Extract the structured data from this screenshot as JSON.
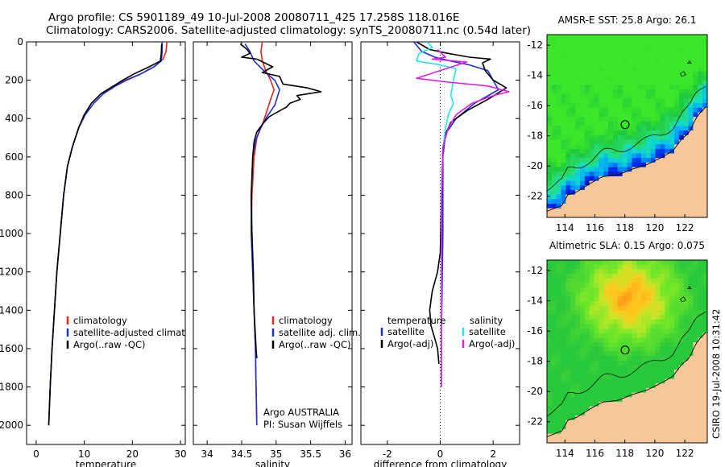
{
  "figure": {
    "title_line1": "Argo profile: CS 5901189_49 10-Jul-2008 20080711_425 17.258S 118.016E",
    "title_line2": "Climatology: CARS2006. Satellite-adjusted climatology: synTS_20080711.nc (0.54d later)",
    "side_stamp": "CSIRO 19-Jul-2008 10:31:42",
    "credit_line1": "Argo AUSTRALIA",
    "credit_line2": "PI: Susan Wijffels"
  },
  "colors": {
    "climatology": "#e8261b",
    "satellite": "#1c2fd9",
    "argo": "#000000",
    "sat_salinity": "#24e5e8",
    "argo_salinity": "#e01ee0",
    "land": "#f7c79a"
  },
  "chart_data": [
    {
      "id": "temperature",
      "type": "line",
      "xlabel": "temperature",
      "ylabel": "",
      "xlim": [
        -2,
        31
      ],
      "ylim": [
        2100,
        0
      ],
      "xticks": [
        "0",
        "10",
        "20",
        "30"
      ],
      "yticks": [
        "0",
        "200",
        "400",
        "600",
        "800",
        "1000",
        "1200",
        "1400",
        "1600",
        "1800",
        "2000"
      ],
      "legend": [
        {
          "label": "climatology",
          "color": "#e8261b"
        },
        {
          "label": "satellite-adjusted climatology",
          "color": "#1c2fd9"
        },
        {
          "label": "Argo(..raw -QC)",
          "color": "#000000"
        }
      ],
      "series": [
        {
          "name": "climatology",
          "color": "#e8261b",
          "points": [
            [
              27.2,
              0
            ],
            [
              27.0,
              50
            ],
            [
              26.4,
              90
            ],
            [
              24.5,
              130
            ],
            [
              21.5,
              170
            ],
            [
              18.5,
              200
            ],
            [
              16.0,
              230
            ],
            [
              13.5,
              270
            ],
            [
              11.5,
              320
            ],
            [
              10.0,
              380
            ],
            [
              8.8,
              450
            ],
            [
              7.5,
              550
            ],
            [
              6.5,
              650
            ],
            [
              5.7,
              800
            ],
            [
              5.0,
              1000
            ],
            [
              4.3,
              1200
            ],
            [
              3.8,
              1400
            ],
            [
              3.3,
              1600
            ],
            [
              2.9,
              1800
            ],
            [
              2.6,
              2000
            ]
          ]
        },
        {
          "name": "satellite-adjusted climatology",
          "color": "#1c2fd9",
          "points": [
            [
              26.2,
              0
            ],
            [
              26.2,
              50
            ],
            [
              26.0,
              100
            ],
            [
              24.5,
              130
            ],
            [
              21.5,
              170
            ],
            [
              18.8,
              200
            ],
            [
              16.5,
              230
            ],
            [
              14.0,
              270
            ],
            [
              12.0,
              320
            ],
            [
              10.2,
              380
            ],
            [
              8.8,
              450
            ],
            [
              7.5,
              550
            ],
            [
              6.5,
              650
            ],
            [
              5.7,
              800
            ],
            [
              5.0,
              1000
            ],
            [
              4.3,
              1200
            ],
            [
              3.8,
              1400
            ],
            [
              3.3,
              1600
            ],
            [
              2.9,
              1800
            ],
            [
              2.6,
              2000
            ]
          ]
        },
        {
          "name": "Argo(..raw -QC)",
          "color": "#000000",
          "points": [
            [
              26.1,
              10
            ],
            [
              26.0,
              60
            ],
            [
              25.8,
              100
            ],
            [
              23.5,
              130
            ],
            [
              20.5,
              165
            ],
            [
              18.0,
              200
            ],
            [
              15.5,
              240
            ],
            [
              13.5,
              270
            ],
            [
              11.5,
              320
            ],
            [
              10.0,
              380
            ],
            [
              8.8,
              450
            ],
            [
              7.5,
              550
            ],
            [
              6.5,
              650
            ],
            [
              5.7,
              800
            ],
            [
              5.0,
              1000
            ],
            [
              4.3,
              1200
            ],
            [
              3.8,
              1400
            ],
            [
              3.3,
              1600
            ],
            [
              2.9,
              1800
            ],
            [
              2.6,
              2000
            ]
          ]
        }
      ]
    },
    {
      "id": "salinity",
      "type": "line",
      "xlabel": "salinity",
      "ylabel": "",
      "xlim": [
        33.8,
        36.1
      ],
      "ylim": [
        2100,
        0
      ],
      "xticks": [
        "34",
        "34.5",
        "35",
        "35.5",
        "36"
      ],
      "yticks": [],
      "legend": [
        {
          "label": "climatology",
          "color": "#e8261b"
        },
        {
          "label": "satellite adj. clim.",
          "color": "#1c2fd9"
        },
        {
          "label": "Argo(..raw -QC)",
          "color": "#000000"
        }
      ],
      "series": [
        {
          "name": "climatology",
          "color": "#e8261b",
          "points": [
            [
              34.8,
              0
            ],
            [
              34.78,
              50
            ],
            [
              34.8,
              100
            ],
            [
              34.85,
              150
            ],
            [
              34.92,
              200
            ],
            [
              34.97,
              250
            ],
            [
              34.92,
              300
            ],
            [
              34.85,
              380
            ],
            [
              34.78,
              450
            ],
            [
              34.72,
              500
            ],
            [
              34.68,
              600
            ],
            [
              34.65,
              800
            ],
            [
              34.64,
              1000
            ],
            [
              34.66,
              1200
            ],
            [
              34.68,
              1400
            ],
            [
              34.7,
              1600
            ],
            [
              34.71,
              1800
            ],
            [
              34.72,
              2000
            ]
          ]
        },
        {
          "name": "satellite adj. clim.",
          "color": "#1c2fd9",
          "points": [
            [
              34.55,
              10
            ],
            [
              34.62,
              50
            ],
            [
              34.68,
              100
            ],
            [
              34.85,
              160
            ],
            [
              34.98,
              200
            ],
            [
              35.05,
              250
            ],
            [
              34.98,
              330
            ],
            [
              34.85,
              400
            ],
            [
              34.76,
              460
            ],
            [
              34.7,
              520
            ],
            [
              34.66,
              600
            ],
            [
              34.64,
              800
            ],
            [
              34.64,
              1000
            ],
            [
              34.66,
              1200
            ],
            [
              34.68,
              1400
            ],
            [
              34.7,
              1600
            ],
            [
              34.71,
              1800
            ],
            [
              34.72,
              2000
            ]
          ]
        },
        {
          "name": "Argo(..raw -QC)",
          "color": "#000000",
          "points": [
            [
              34.48,
              10
            ],
            [
              34.58,
              40
            ],
            [
              34.62,
              60
            ],
            [
              34.5,
              80
            ],
            [
              34.72,
              90
            ],
            [
              34.95,
              130
            ],
            [
              34.8,
              160
            ],
            [
              35.05,
              180
            ],
            [
              35.1,
              220
            ],
            [
              35.45,
              240
            ],
            [
              35.65,
              260
            ],
            [
              35.3,
              280
            ],
            [
              35.35,
              300
            ],
            [
              35.2,
              320
            ],
            [
              35.15,
              340
            ],
            [
              35.0,
              370
            ],
            [
              34.9,
              390
            ],
            [
              34.8,
              430
            ],
            [
              34.72,
              470
            ],
            [
              34.68,
              520
            ],
            [
              34.66,
              600
            ],
            [
              34.64,
              800
            ],
            [
              34.65,
              1000
            ],
            [
              34.67,
              1200
            ],
            [
              34.68,
              1400
            ],
            [
              34.71,
              1600
            ],
            [
              34.72,
              1650
            ]
          ]
        }
      ]
    },
    {
      "id": "difference",
      "type": "line",
      "xlabel": "difference from climatology",
      "ylabel": "",
      "xlim": [
        -3,
        3
      ],
      "ylim": [
        2100,
        0
      ],
      "xticks": [
        "-2",
        "0",
        "2"
      ],
      "yticks": [],
      "legend_left_title": "temperature",
      "legend_right_title": "salinity",
      "legend": [
        {
          "label": "satellite",
          "color": "#1c2fd9"
        },
        {
          "label": "Argo(-adj)",
          "color": "#000000"
        },
        {
          "label": "satellite",
          "color": "#24e5e8"
        },
        {
          "label": "Argo(-adj)",
          "color": "#e01ee0"
        }
      ],
      "series": [
        {
          "name": "temperature satellite",
          "color": "#1c2fd9",
          "points": [
            [
              -1.0,
              0
            ],
            [
              -0.7,
              50
            ],
            [
              -0.2,
              80
            ],
            [
              0.4,
              100
            ],
            [
              1.1,
              120
            ],
            [
              1.8,
              150
            ],
            [
              2.0,
              200
            ],
            [
              2.2,
              250
            ],
            [
              1.3,
              320
            ],
            [
              0.6,
              400
            ],
            [
              0.2,
              480
            ],
            [
              0.1,
              600
            ],
            [
              0.1,
              1000
            ],
            [
              0.05,
              1500
            ],
            [
              0.05,
              1800
            ]
          ]
        },
        {
          "name": "temperature Argo(-adj)",
          "color": "#000000",
          "points": [
            [
              -0.9,
              0
            ],
            [
              -0.4,
              40
            ],
            [
              0.3,
              60
            ],
            [
              1.1,
              80
            ],
            [
              1.9,
              90
            ],
            [
              1.6,
              110
            ],
            [
              1.7,
              150
            ],
            [
              2.0,
              200
            ],
            [
              2.5,
              240
            ],
            [
              1.8,
              300
            ],
            [
              1.0,
              360
            ],
            [
              0.4,
              420
            ],
            [
              0.2,
              480
            ],
            [
              0.1,
              550
            ],
            [
              0.05,
              800
            ],
            [
              0.0,
              1100
            ],
            [
              -0.1,
              1200
            ],
            [
              -0.3,
              1300
            ],
            [
              -0.4,
              1400
            ],
            [
              -0.35,
              1480
            ],
            [
              -0.2,
              1550
            ],
            [
              -0.1,
              1600
            ],
            [
              -0.05,
              1680
            ]
          ]
        },
        {
          "name": "salinity satellite",
          "color": "#24e5e8",
          "points": [
            [
              -0.5,
              0
            ],
            [
              -0.3,
              30
            ],
            [
              -0.8,
              60
            ],
            [
              -0.9,
              100
            ],
            [
              0.0,
              120
            ],
            [
              0.6,
              140
            ],
            [
              0.5,
              200
            ],
            [
              0.4,
              280
            ],
            [
              0.5,
              320
            ],
            [
              0.3,
              380
            ],
            [
              0.2,
              450
            ],
            [
              0.1,
              550
            ],
            [
              0.05,
              800
            ],
            [
              0.05,
              1800
            ]
          ]
        },
        {
          "name": "salinity Argo(-adj)",
          "color": "#e01ee0",
          "points": [
            [
              -0.1,
              40
            ],
            [
              0.2,
              80
            ],
            [
              -0.3,
              90
            ],
            [
              1.0,
              105
            ],
            [
              -0.9,
              190
            ],
            [
              0.3,
              210
            ],
            [
              1.8,
              230
            ],
            [
              2.6,
              260
            ],
            [
              2.0,
              280
            ],
            [
              1.2,
              320
            ],
            [
              0.6,
              380
            ],
            [
              0.3,
              450
            ],
            [
              0.1,
              550
            ],
            [
              0.05,
              800
            ],
            [
              0.05,
              1400
            ],
            [
              0.05,
              1800
            ]
          ]
        }
      ]
    },
    {
      "id": "sst_map",
      "type": "heatmap",
      "title": "AMSR-E SST: 25.8 Argo: 26.1",
      "xlim": [
        112.8,
        123.5
      ],
      "ylim": [
        -23.4,
        -11.3
      ],
      "xticks": [
        "114",
        "116",
        "118",
        "120",
        "122"
      ],
      "yticks": [
        "-12",
        "-14",
        "-16",
        "-18",
        "-20",
        "-22"
      ],
      "argo_position": {
        "lon": 118.016,
        "lat": -17.258
      }
    },
    {
      "id": "sla_map",
      "type": "heatmap",
      "title": "Altimetric SLA: 0.15 Argo: 0.075",
      "xlim": [
        112.8,
        123.5
      ],
      "ylim": [
        -23.4,
        -11.3
      ],
      "xticks": [
        "114",
        "116",
        "118",
        "120",
        "122"
      ],
      "yticks": [
        "-12",
        "-14",
        "-16",
        "-18",
        "-20",
        "-22"
      ],
      "argo_position": {
        "lon": 118.016,
        "lat": -17.258
      }
    }
  ]
}
